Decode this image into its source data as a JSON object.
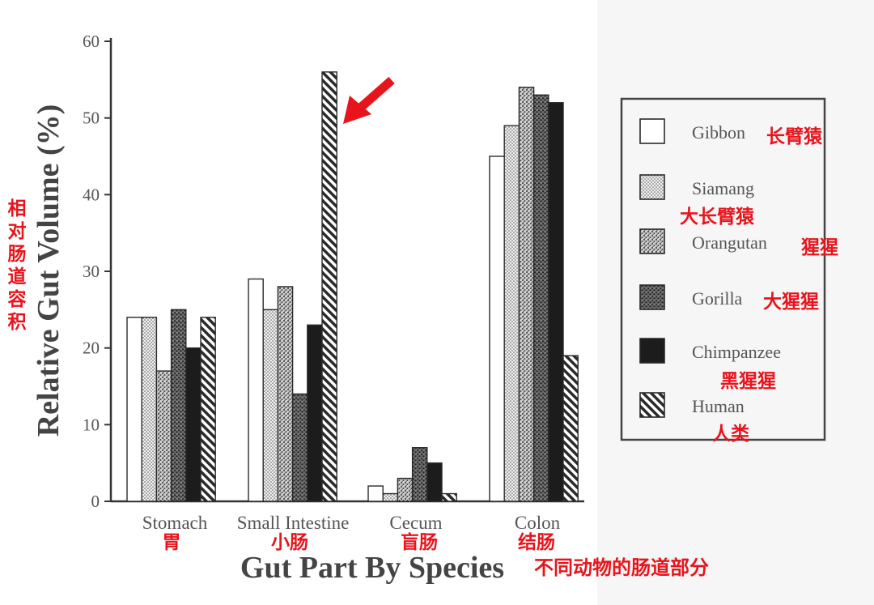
{
  "chart_data": {
    "type": "bar",
    "title": "",
    "xlabel": "Gut Part By Species",
    "xlabel_cn": "不同动物的肠道部分",
    "ylabel": "Relative Gut Volume (%)",
    "ylabel_cn": "相对肠道容积",
    "ylim": [
      0,
      60
    ],
    "yticks": [
      "0",
      "10",
      "20",
      "30",
      "40",
      "50",
      "60"
    ],
    "categories": [
      "Stomach",
      "Small Intestine",
      "Cecum",
      "Colon"
    ],
    "categories_cn": [
      "胃",
      "小肠",
      "盲肠",
      "结肠"
    ],
    "series": [
      {
        "name": "Gibbon",
        "name_cn": "长臂猿",
        "pattern": "white",
        "values": [
          24,
          29,
          2,
          45
        ]
      },
      {
        "name": "Siamang",
        "name_cn": "大长臂猿",
        "pattern": "fine-dots",
        "values": [
          24,
          25,
          1,
          49
        ]
      },
      {
        "name": "Orangutan",
        "name_cn": "猩猩",
        "pattern": "stipple",
        "values": [
          17,
          28,
          3,
          54
        ]
      },
      {
        "name": "Gorilla",
        "name_cn": "大猩猩",
        "pattern": "dark-stipple",
        "values": [
          25,
          14,
          7,
          53
        ]
      },
      {
        "name": "Chimpanzee",
        "name_cn": "黑猩猩",
        "pattern": "solid-black",
        "values": [
          20,
          23,
          5,
          52
        ]
      },
      {
        "name": "Human",
        "name_cn": "人类",
        "pattern": "diagonal-hatch",
        "values": [
          24,
          56,
          1,
          19
        ]
      }
    ],
    "grid": false,
    "legend_position": "right",
    "annotation": {
      "type": "arrow",
      "target": "Human / Small Intestine",
      "color": "#e8141c"
    }
  },
  "colors": {
    "accent": "#e8141c",
    "ink": "#2a2a2a"
  }
}
